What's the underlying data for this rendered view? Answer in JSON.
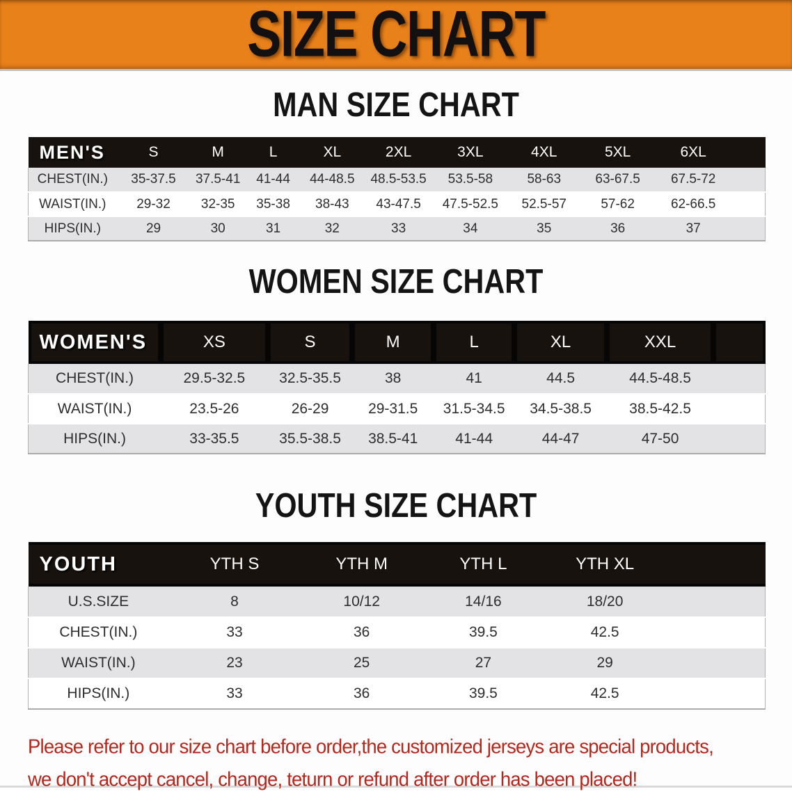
{
  "banner": {
    "title": "SIZE CHART",
    "bg_color": "#E8811A",
    "text_color": "#121010"
  },
  "sections": [
    {
      "heading": "MAN SIZE CHART",
      "table_label": "MEN'S",
      "columns": [
        "S",
        "M",
        "L",
        "XL",
        "2XL",
        "3XL",
        "4XL",
        "5XL",
        "6XL"
      ],
      "rows": [
        {
          "label": "CHEST(IN.)",
          "values": [
            "35-37.5",
            "37.5-41",
            "41-44",
            "44-48.5",
            "48.5-53.5",
            "53.5-58",
            "58-63",
            "63-67.5",
            "67.5-72"
          ]
        },
        {
          "label": "WAIST(IN.)",
          "values": [
            "29-32",
            "32-35",
            "35-38",
            "38-43",
            "43-47.5",
            "47.5-52.5",
            "52.5-57",
            "57-62",
            "62-66.5"
          ]
        },
        {
          "label": "HIPS(IN.)",
          "values": [
            "29",
            "30",
            "31",
            "32",
            "33",
            "34",
            "35",
            "36",
            "37"
          ]
        }
      ]
    },
    {
      "heading": "WOMEN SIZE CHART",
      "table_label": "WOMEN'S",
      "columns": [
        "XS",
        "S",
        "M",
        "L",
        "XL",
        "XXL"
      ],
      "rows": [
        {
          "label": "CHEST(IN.)",
          "values": [
            "29.5-32.5",
            "32.5-35.5",
            "38",
            "41",
            "44.5",
            "44.5-48.5"
          ]
        },
        {
          "label": "WAIST(IN.)",
          "values": [
            "23.5-26",
            "26-29",
            "29-31.5",
            "31.5-34.5",
            "34.5-38.5",
            "38.5-42.5"
          ]
        },
        {
          "label": "HIPS(IN.)",
          "values": [
            "33-35.5",
            "35.5-38.5",
            "38.5-41",
            "41-44",
            "44-47",
            "47-50"
          ]
        }
      ]
    },
    {
      "heading": "YOUTH SIZE CHART",
      "table_label": "YOUTH",
      "columns": [
        "YTH S",
        "YTH M",
        "YTH L",
        "YTH XL"
      ],
      "rows": [
        {
          "label": "U.S.SIZE",
          "values": [
            "8",
            "10/12",
            "14/16",
            "18/20"
          ]
        },
        {
          "label": "CHEST(IN.)",
          "values": [
            "33",
            "36",
            "39.5",
            "42.5"
          ]
        },
        {
          "label": "WAIST(IN.)",
          "values": [
            "23",
            "25",
            "27",
            "29"
          ]
        },
        {
          "label": "HIPS(IN.)",
          "values": [
            "33",
            "36",
            "39.5",
            "42.5"
          ]
        }
      ]
    }
  ],
  "footer": {
    "line1": "Please refer to our size chart before order,the customized jerseys are special products,",
    "line2": "we don't accept cancel, change, teturn or refund after order has been placed!",
    "text_color": "#B4271D"
  },
  "colors": {
    "banner_orange": "#E8811A",
    "table_header_black": "#17120E",
    "stripe_gray": "#E3E3E5",
    "disclaimer_red": "#B4271D"
  }
}
